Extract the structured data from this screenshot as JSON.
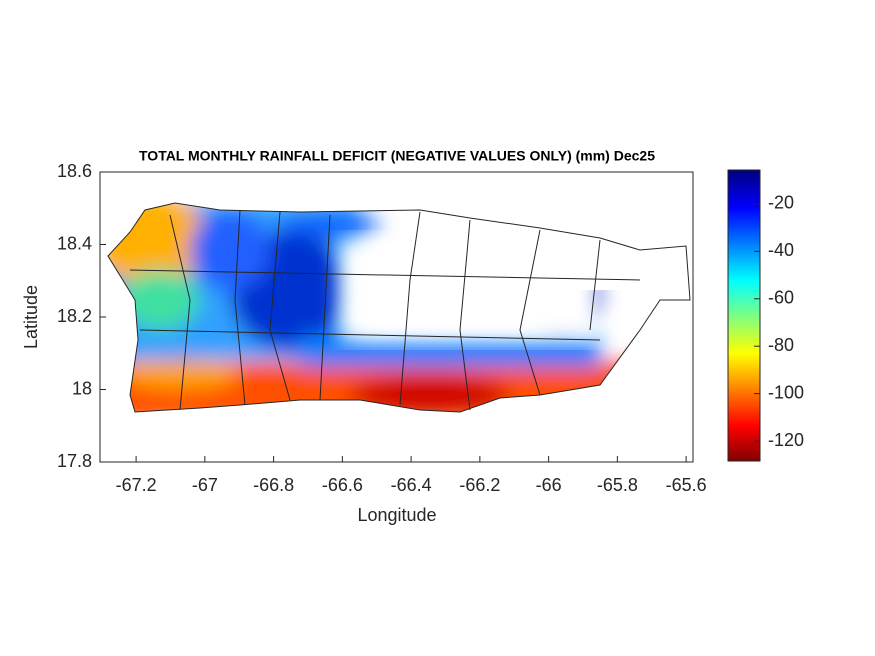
{
  "chart_data": {
    "type": "map",
    "title": "TOTAL MONTHLY RAINFALL DEFICIT (NEGATIVE VALUES ONLY) (mm) Dec25",
    "xlabel": "Longitude",
    "ylabel": "Latitude",
    "xlim": [
      -67.305,
      -65.58
    ],
    "xticks": [
      -67.2,
      -67,
      -66.8,
      -66.6,
      -66.4,
      -66.2,
      -66,
      -65.8,
      -65.6
    ],
    "ylim": [
      17.8,
      18.6
    ],
    "yticks": [
      17.8,
      18,
      18.2,
      18.4,
      18.6
    ],
    "clim": [
      -128.4,
      -5.7
    ],
    "cticks": [
      -120,
      -100,
      -80,
      -60,
      -40,
      -20
    ]
  }
}
